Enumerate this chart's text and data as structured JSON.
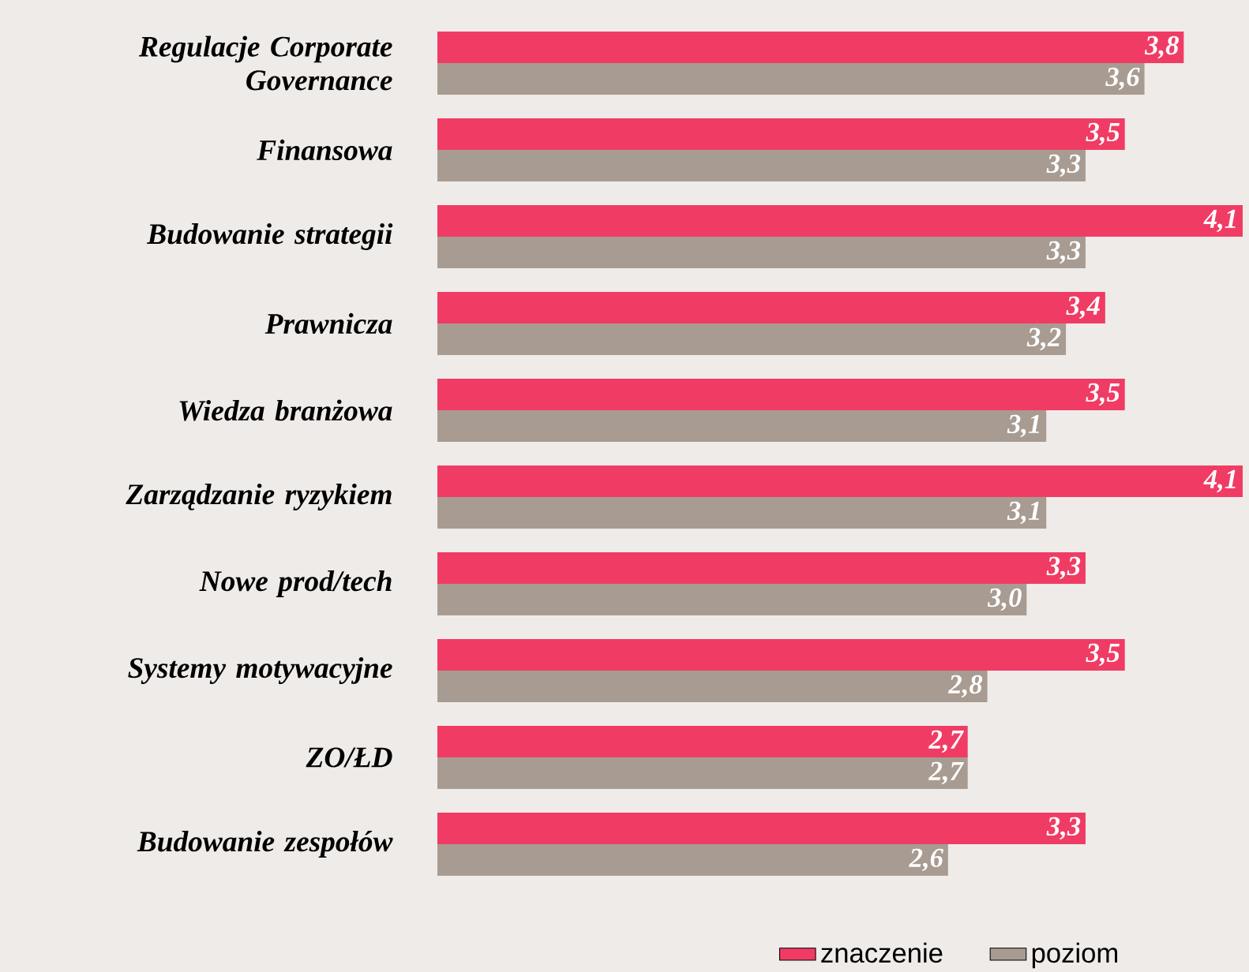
{
  "chart_data": {
    "type": "bar",
    "orientation": "horizontal",
    "categories": [
      "Regulacje Corporate Governance",
      "Finansowa",
      "Budowanie strategii",
      "Prawnicza",
      "Wiedza branżowa",
      "Zarządzanie ryzykiem",
      "Nowe prod/tech",
      "Systemy motywacyjne",
      "ZO/ŁD",
      "Budowanie zespołów"
    ],
    "series": [
      {
        "name": "znaczenie",
        "color": "#f03c64",
        "values": [
          3.8,
          3.5,
          4.1,
          3.4,
          3.5,
          4.1,
          3.3,
          3.5,
          2.7,
          3.3
        ],
        "value_labels": [
          "3,8",
          "3,5",
          "4,1",
          "3,4",
          "3,5",
          "4,1",
          "3,3",
          "3,5",
          "2,7",
          "3,3"
        ]
      },
      {
        "name": "poziom",
        "color": "#a89c92",
        "values": [
          3.6,
          3.3,
          3.3,
          3.2,
          3.1,
          3.1,
          3.0,
          2.8,
          2.7,
          2.6
        ],
        "value_labels": [
          "3,6",
          "3,3",
          "3,3",
          "3,2",
          "3,1",
          "3,1",
          "3,0",
          "2,8",
          "2,7",
          "2,6"
        ]
      }
    ],
    "xlim": [
      0,
      4.1
    ],
    "legend": "bottom right",
    "tick_labels": "y"
  }
}
